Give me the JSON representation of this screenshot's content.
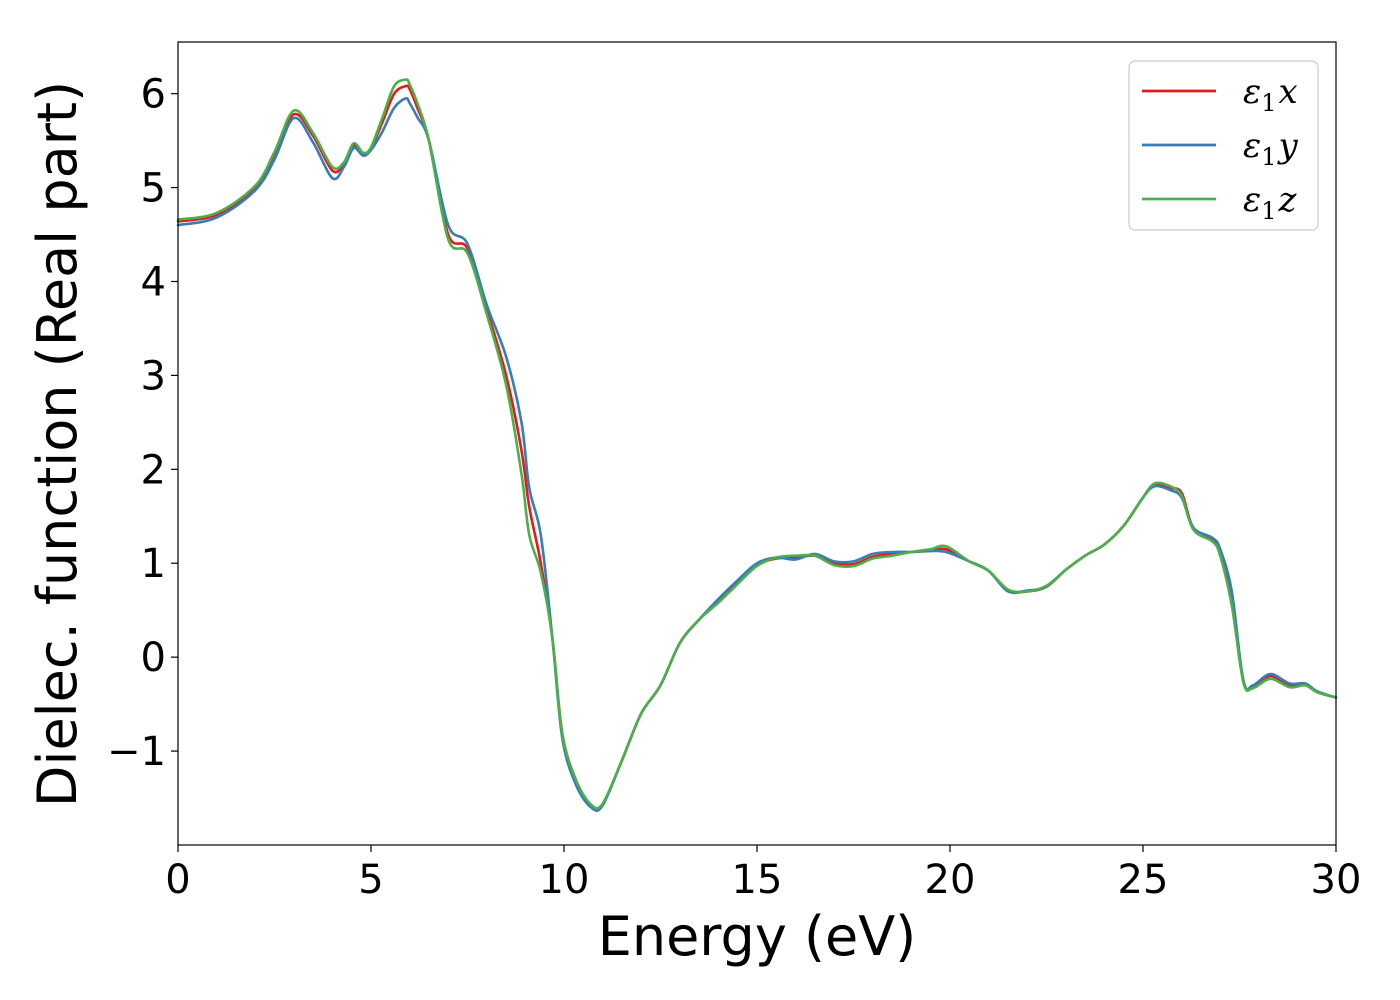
{
  "chart_data": {
    "type": "line",
    "xlabel": "Energy (eV)",
    "ylabel": "Dielec. function (Real part)",
    "xlim": [
      0,
      30
    ],
    "ylim": [
      -2.0,
      6.55
    ],
    "xticks": [
      0,
      5,
      10,
      15,
      20,
      25,
      30
    ],
    "xtick_labels": [
      "0",
      "5",
      "10",
      "15",
      "20",
      "25",
      "30"
    ],
    "yticks": [
      -1,
      0,
      1,
      2,
      3,
      4,
      5,
      6
    ],
    "ytick_labels": [
      "−1",
      "0",
      "1",
      "2",
      "3",
      "4",
      "5",
      "6"
    ],
    "grid": false,
    "legend_position": "top-right",
    "series": [
      {
        "name_base": "ε",
        "name_sub": "1",
        "name_suffix": "x",
        "color": "#e41a1c",
        "points": [
          [
            0,
            4.64
          ],
          [
            1,
            4.71
          ],
          [
            2,
            5.0
          ],
          [
            2.5,
            5.35
          ],
          [
            3,
            5.78
          ],
          [
            3.5,
            5.55
          ],
          [
            4,
            5.18
          ],
          [
            4.3,
            5.25
          ],
          [
            4.55,
            5.45
          ],
          [
            4.8,
            5.36
          ],
          [
            5.0,
            5.42
          ],
          [
            5.3,
            5.7
          ],
          [
            5.6,
            6.0
          ],
          [
            5.9,
            6.08
          ],
          [
            6.0,
            6.05
          ],
          [
            6.2,
            5.85
          ],
          [
            6.5,
            5.5
          ],
          [
            7.0,
            4.5
          ],
          [
            7.5,
            4.35
          ],
          [
            8.0,
            3.7
          ],
          [
            8.5,
            3.0
          ],
          [
            8.9,
            2.2
          ],
          [
            9.1,
            1.6
          ],
          [
            9.4,
            1.0
          ],
          [
            9.7,
            0.2
          ],
          [
            9.95,
            -0.8
          ],
          [
            10.3,
            -1.3
          ],
          [
            10.7,
            -1.58
          ],
          [
            11.0,
            -1.57
          ],
          [
            11.5,
            -1.1
          ],
          [
            12.0,
            -0.6
          ],
          [
            12.5,
            -0.3
          ],
          [
            13.0,
            0.15
          ],
          [
            13.5,
            0.4
          ],
          [
            14.0,
            0.6
          ],
          [
            14.5,
            0.8
          ],
          [
            15.0,
            0.98
          ],
          [
            15.5,
            1.05
          ],
          [
            16.0,
            1.06
          ],
          [
            16.5,
            1.08
          ],
          [
            17.0,
            1.0
          ],
          [
            17.5,
            0.99
          ],
          [
            18.0,
            1.07
          ],
          [
            18.5,
            1.1
          ],
          [
            19.0,
            1.12
          ],
          [
            19.5,
            1.13
          ],
          [
            19.9,
            1.15
          ],
          [
            20.5,
            1.02
          ],
          [
            21.0,
            0.92
          ],
          [
            21.5,
            0.71
          ],
          [
            22.0,
            0.7
          ],
          [
            22.5,
            0.75
          ],
          [
            23.0,
            0.93
          ],
          [
            23.5,
            1.08
          ],
          [
            24.0,
            1.2
          ],
          [
            24.5,
            1.4
          ],
          [
            25.0,
            1.7
          ],
          [
            25.3,
            1.84
          ],
          [
            25.7,
            1.8
          ],
          [
            26.0,
            1.75
          ],
          [
            26.3,
            1.38
          ],
          [
            26.8,
            1.25
          ],
          [
            27.0,
            1.1
          ],
          [
            27.3,
            0.6
          ],
          [
            27.6,
            -0.25
          ],
          [
            27.85,
            -0.32
          ],
          [
            28.3,
            -0.2
          ],
          [
            28.8,
            -0.3
          ],
          [
            29.2,
            -0.28
          ],
          [
            29.5,
            -0.37
          ],
          [
            30,
            -0.43
          ]
        ]
      },
      {
        "name_base": "ε",
        "name_sub": "1",
        "name_suffix": "y",
        "color": "#377eb8",
        "points": [
          [
            0,
            4.6
          ],
          [
            1,
            4.68
          ],
          [
            2,
            4.97
          ],
          [
            2.5,
            5.3
          ],
          [
            3,
            5.74
          ],
          [
            3.5,
            5.48
          ],
          [
            4,
            5.1
          ],
          [
            4.3,
            5.22
          ],
          [
            4.55,
            5.42
          ],
          [
            4.8,
            5.34
          ],
          [
            5.0,
            5.4
          ],
          [
            5.3,
            5.6
          ],
          [
            5.6,
            5.85
          ],
          [
            5.9,
            5.95
          ],
          [
            6.0,
            5.9
          ],
          [
            6.2,
            5.75
          ],
          [
            6.5,
            5.5
          ],
          [
            7.0,
            4.6
          ],
          [
            7.5,
            4.4
          ],
          [
            8.0,
            3.75
          ],
          [
            8.5,
            3.2
          ],
          [
            8.9,
            2.5
          ],
          [
            9.1,
            1.8
          ],
          [
            9.4,
            1.3
          ],
          [
            9.7,
            0.2
          ],
          [
            9.95,
            -0.85
          ],
          [
            10.3,
            -1.35
          ],
          [
            10.7,
            -1.6
          ],
          [
            11.0,
            -1.58
          ],
          [
            11.5,
            -1.1
          ],
          [
            12.0,
            -0.6
          ],
          [
            12.5,
            -0.3
          ],
          [
            13.0,
            0.15
          ],
          [
            13.5,
            0.4
          ],
          [
            14.0,
            0.62
          ],
          [
            14.5,
            0.82
          ],
          [
            15.0,
            1.0
          ],
          [
            15.5,
            1.06
          ],
          [
            16.0,
            1.04
          ],
          [
            16.5,
            1.1
          ],
          [
            17.0,
            1.02
          ],
          [
            17.5,
            1.02
          ],
          [
            18.0,
            1.1
          ],
          [
            18.5,
            1.12
          ],
          [
            19.0,
            1.12
          ],
          [
            19.5,
            1.13
          ],
          [
            19.9,
            1.12
          ],
          [
            20.5,
            1.02
          ],
          [
            21.0,
            0.92
          ],
          [
            21.5,
            0.7
          ],
          [
            22.0,
            0.71
          ],
          [
            22.5,
            0.75
          ],
          [
            23.0,
            0.93
          ],
          [
            23.5,
            1.08
          ],
          [
            24.0,
            1.2
          ],
          [
            24.5,
            1.4
          ],
          [
            25.0,
            1.7
          ],
          [
            25.3,
            1.82
          ],
          [
            25.7,
            1.78
          ],
          [
            26.0,
            1.7
          ],
          [
            26.3,
            1.38
          ],
          [
            26.8,
            1.27
          ],
          [
            27.0,
            1.15
          ],
          [
            27.3,
            0.7
          ],
          [
            27.6,
            -0.25
          ],
          [
            27.85,
            -0.3
          ],
          [
            28.3,
            -0.18
          ],
          [
            28.8,
            -0.28
          ],
          [
            29.2,
            -0.28
          ],
          [
            29.5,
            -0.36
          ],
          [
            30,
            -0.43
          ]
        ]
      },
      {
        "name_base": "ε",
        "name_sub": "1",
        "name_suffix": "z",
        "color": "#4daf4a",
        "points": [
          [
            0,
            4.66
          ],
          [
            1,
            4.73
          ],
          [
            2,
            5.02
          ],
          [
            2.5,
            5.38
          ],
          [
            3,
            5.82
          ],
          [
            3.5,
            5.58
          ],
          [
            4,
            5.22
          ],
          [
            4.3,
            5.27
          ],
          [
            4.55,
            5.47
          ],
          [
            4.8,
            5.37
          ],
          [
            5.0,
            5.43
          ],
          [
            5.3,
            5.75
          ],
          [
            5.6,
            6.08
          ],
          [
            5.9,
            6.15
          ],
          [
            6.0,
            6.1
          ],
          [
            6.2,
            5.9
          ],
          [
            6.5,
            5.5
          ],
          [
            7.0,
            4.45
          ],
          [
            7.5,
            4.3
          ],
          [
            8.0,
            3.65
          ],
          [
            8.5,
            2.9
          ],
          [
            8.9,
            1.95
          ],
          [
            9.1,
            1.3
          ],
          [
            9.4,
            0.9
          ],
          [
            9.7,
            0.2
          ],
          [
            9.95,
            -0.8
          ],
          [
            10.3,
            -1.3
          ],
          [
            10.7,
            -1.57
          ],
          [
            11.0,
            -1.56
          ],
          [
            11.5,
            -1.1
          ],
          [
            12.0,
            -0.6
          ],
          [
            12.5,
            -0.3
          ],
          [
            13.0,
            0.15
          ],
          [
            13.5,
            0.4
          ],
          [
            14.0,
            0.58
          ],
          [
            14.5,
            0.78
          ],
          [
            15.0,
            0.97
          ],
          [
            15.5,
            1.06
          ],
          [
            16.0,
            1.08
          ],
          [
            16.5,
            1.08
          ],
          [
            17.0,
            0.98
          ],
          [
            17.5,
            0.97
          ],
          [
            18.0,
            1.05
          ],
          [
            18.5,
            1.08
          ],
          [
            19.0,
            1.12
          ],
          [
            19.5,
            1.15
          ],
          [
            19.9,
            1.18
          ],
          [
            20.5,
            1.02
          ],
          [
            21.0,
            0.92
          ],
          [
            21.5,
            0.72
          ],
          [
            22.0,
            0.7
          ],
          [
            22.5,
            0.76
          ],
          [
            23.0,
            0.93
          ],
          [
            23.5,
            1.08
          ],
          [
            24.0,
            1.2
          ],
          [
            24.5,
            1.4
          ],
          [
            25.0,
            1.7
          ],
          [
            25.3,
            1.85
          ],
          [
            25.7,
            1.82
          ],
          [
            26.0,
            1.72
          ],
          [
            26.3,
            1.36
          ],
          [
            26.8,
            1.23
          ],
          [
            27.0,
            1.08
          ],
          [
            27.3,
            0.55
          ],
          [
            27.6,
            -0.27
          ],
          [
            27.85,
            -0.33
          ],
          [
            28.3,
            -0.23
          ],
          [
            28.8,
            -0.32
          ],
          [
            29.2,
            -0.3
          ],
          [
            29.5,
            -0.37
          ],
          [
            30,
            -0.43
          ]
        ]
      }
    ]
  }
}
